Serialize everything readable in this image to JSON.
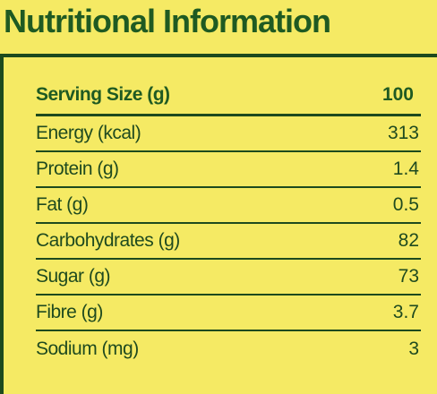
{
  "title": "Nutritional Information",
  "header": {
    "label": "Serving Size (g)",
    "value": "100"
  },
  "rows": [
    {
      "label": "Energy (kcal)",
      "value": "313"
    },
    {
      "label": "Protein (g)",
      "value": "1.4"
    },
    {
      "label": "Fat (g)",
      "value": "0.5"
    },
    {
      "label": "Carbohydrates (g)",
      "value": "82"
    },
    {
      "label": "Sugar (g)",
      "value": "73"
    },
    {
      "label": "Fibre (g)",
      "value": "3.7"
    },
    {
      "label": "Sodium (mg)",
      "value": "3"
    }
  ],
  "colors": {
    "background": "#f5ea64",
    "text": "#1f4a1f",
    "accent": "#1f5a22"
  }
}
